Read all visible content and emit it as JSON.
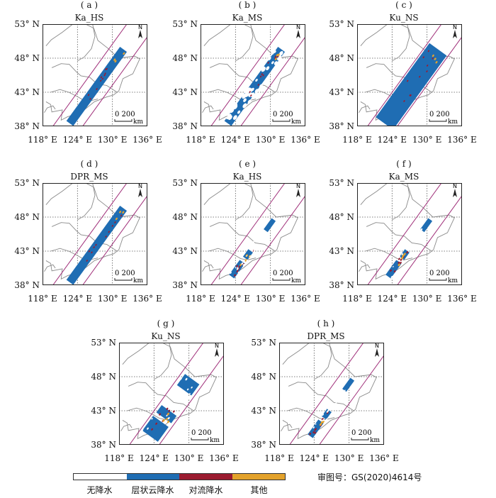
{
  "colors": {
    "no_precip": "#ffffff",
    "stratiform": "#1f6db3",
    "convective": "#9b1b30",
    "other": "#e3a22b",
    "swath": "#a0307a",
    "border": "#8a8a8a",
    "grid": "#555555"
  },
  "axes": {
    "lat_labels": [
      "53° N",
      "48° N",
      "43° N",
      "38° N"
    ],
    "lon_labels": [
      "118° E",
      "124° E",
      "130° E",
      "136° E"
    ],
    "scalebar_value": "0 200",
    "scalebar_unit": "km",
    "north_label": "N"
  },
  "panels": [
    {
      "label": "( a )",
      "title": "Ka_HS",
      "coverage": "full-narrow"
    },
    {
      "label": "( b )",
      "title": "Ka_MS",
      "coverage": "sparse-narrow"
    },
    {
      "label": "( c )",
      "title": "Ku_NS",
      "coverage": "full-wide"
    },
    {
      "label": "( d )",
      "title": "DPR_MS",
      "coverage": "full-narrow"
    },
    {
      "label": "( e )",
      "title": "Ka_HS",
      "coverage": "scattered"
    },
    {
      "label": "( f )",
      "title": "Ka_MS",
      "coverage": "scattered"
    },
    {
      "label": "( g )",
      "title": "Ku_NS",
      "coverage": "scattered-wide"
    },
    {
      "label": "( h )",
      "title": "DPR_MS",
      "coverage": "scattered"
    }
  ],
  "legend": {
    "items": [
      {
        "label": "无降水",
        "color": "#ffffff"
      },
      {
        "label": "层状云降水",
        "color": "#1f6db3"
      },
      {
        "label": "对流降水",
        "color": "#9b1b30"
      },
      {
        "label": "其他",
        "color": "#e3a22b"
      }
    ]
  },
  "review_number": "审图号：GS(2020)4614号"
}
